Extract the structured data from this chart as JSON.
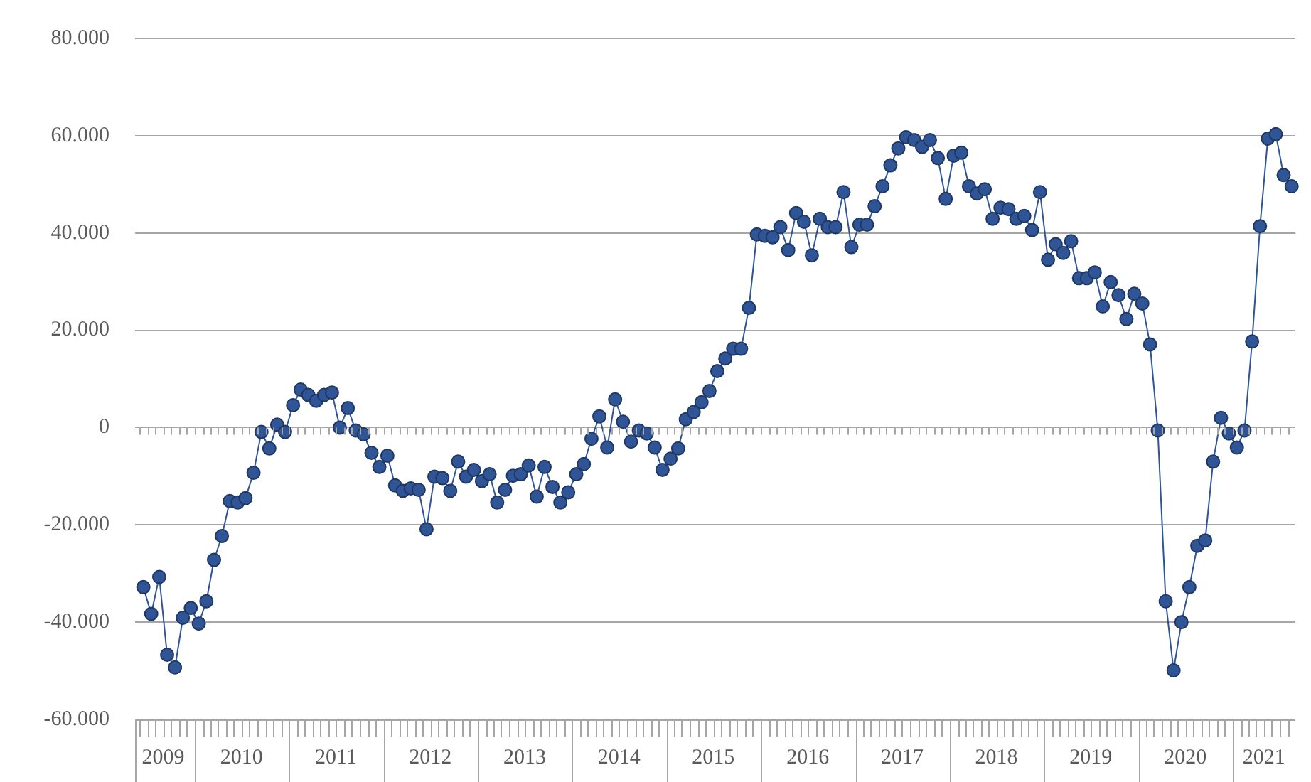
{
  "chart_data": {
    "type": "line",
    "marker": "circle",
    "grid": "y",
    "color": "#2f5597",
    "x": [
      "2009-06",
      "2009-07",
      "2009-08",
      "2009-09",
      "2009-10",
      "2009-11",
      "2009-12",
      "2010-01",
      "2010-02",
      "2010-03",
      "2010-04",
      "2010-05",
      "2010-06",
      "2010-07",
      "2010-08",
      "2010-09",
      "2010-10",
      "2010-11",
      "2010-12",
      "2011-01",
      "2011-02",
      "2011-03",
      "2011-04",
      "2011-05",
      "2011-06",
      "2011-07",
      "2011-08",
      "2011-09",
      "2011-10",
      "2011-11",
      "2011-12",
      "2012-01",
      "2012-02",
      "2012-03",
      "2012-04",
      "2012-05",
      "2012-06",
      "2012-07",
      "2012-08",
      "2012-09",
      "2012-10",
      "2012-11",
      "2012-12",
      "2013-01",
      "2013-02",
      "2013-03",
      "2013-04",
      "2013-05",
      "2013-06",
      "2013-07",
      "2013-08",
      "2013-09",
      "2013-10",
      "2013-11",
      "2013-12",
      "2014-01",
      "2014-02",
      "2014-03",
      "2014-04",
      "2014-05",
      "2014-06",
      "2014-07",
      "2014-08",
      "2014-09",
      "2014-10",
      "2014-11",
      "2014-12",
      "2015-01",
      "2015-02",
      "2015-03",
      "2015-04",
      "2015-05",
      "2015-06",
      "2015-07",
      "2015-08",
      "2015-09",
      "2015-10",
      "2015-11",
      "2015-12",
      "2016-01",
      "2016-02",
      "2016-03",
      "2016-04",
      "2016-05",
      "2016-06",
      "2016-07",
      "2016-08",
      "2016-09",
      "2016-10",
      "2016-11",
      "2016-12",
      "2017-01",
      "2017-02",
      "2017-03",
      "2017-04",
      "2017-05",
      "2017-06",
      "2017-07",
      "2017-08",
      "2017-09",
      "2017-10",
      "2017-11",
      "2017-12",
      "2018-01",
      "2018-02",
      "2018-03",
      "2018-04",
      "2018-05",
      "2018-06",
      "2018-07",
      "2018-08",
      "2018-09",
      "2018-10",
      "2018-11",
      "2018-12",
      "2019-01",
      "2019-02",
      "2019-03",
      "2019-04",
      "2019-05",
      "2019-06",
      "2019-07",
      "2019-08",
      "2019-09",
      "2019-10",
      "2019-11",
      "2019-12",
      "2020-01",
      "2020-02",
      "2020-03",
      "2020-04",
      "2020-05",
      "2020-06",
      "2020-07",
      "2020-08",
      "2020-09",
      "2020-10",
      "2020-11",
      "2020-12",
      "2021-01",
      "2021-02",
      "2021-03",
      "2021-04",
      "2021-05",
      "2021-06",
      "2021-07",
      "2021-08"
    ],
    "values": [
      -32800,
      -38300,
      -30700,
      -46700,
      -49300,
      -39100,
      -37100,
      -40300,
      -35700,
      -27200,
      -22300,
      -15100,
      -15400,
      -14500,
      -9300,
      -900,
      -4300,
      600,
      -900,
      4600,
      7800,
      6700,
      5500,
      6700,
      7200,
      0,
      4000,
      -600,
      -1400,
      -5200,
      -8100,
      -5800,
      -11900,
      -13000,
      -12500,
      -12800,
      -20900,
      -10100,
      -10400,
      -13000,
      -7000,
      -10100,
      -8700,
      -11000,
      -9600,
      -15400,
      -12800,
      -9900,
      -9600,
      -7800,
      -14200,
      -8100,
      -12200,
      -15400,
      -13300,
      -9600,
      -7500,
      -2300,
      2300,
      -4100,
      5800,
      1200,
      -2900,
      -600,
      -1200,
      -4100,
      -8700,
      -6400,
      -4300,
      1700,
      3200,
      5200,
      7500,
      11600,
      14200,
      16200,
      16200,
      24600,
      39700,
      39400,
      39100,
      41200,
      36500,
      44100,
      42300,
      35400,
      42900,
      41200,
      41200,
      48400,
      37100,
      41700,
      41700,
      45500,
      49600,
      53900,
      57400,
      59700,
      59100,
      57700,
      59100,
      55400,
      47000,
      55900,
      56500,
      49600,
      48100,
      49000,
      42900,
      45200,
      44900,
      42900,
      43500,
      40600,
      48400,
      34500,
      37700,
      35900,
      38300,
      30700,
      30700,
      31900,
      24900,
      29900,
      27200,
      22300,
      27500,
      25500,
      17100,
      -600,
      -35700,
      -49900,
      -40000,
      -32800,
      -24300,
      -23200,
      -7000,
      2000,
      -1200,
      -4100,
      -600,
      17700,
      41400,
      59400,
      60300,
      51900,
      49600
    ],
    "xlim": [
      "2009-05-15",
      "2021-08-31"
    ],
    "xticks": [
      {
        "value": "2009-09-01",
        "label": "2009"
      },
      {
        "value": "2010-07-01",
        "label": "2010"
      },
      {
        "value": "2011-07-01",
        "label": "2011"
      },
      {
        "value": "2012-07-01",
        "label": "2012"
      },
      {
        "value": "2013-07-01",
        "label": "2013"
      },
      {
        "value": "2014-07-01",
        "label": "2014"
      },
      {
        "value": "2015-07-01",
        "label": "2015"
      },
      {
        "value": "2016-07-01",
        "label": "2016"
      },
      {
        "value": "2017-07-01",
        "label": "2017"
      },
      {
        "value": "2018-07-01",
        "label": "2018"
      },
      {
        "value": "2019-07-01",
        "label": "2019"
      },
      {
        "value": "2020-07-01",
        "label": "2020"
      },
      {
        "value": "2021-05-01",
        "label": "2021"
      }
    ],
    "ylim": [
      -60000,
      80000
    ],
    "yticks": [
      {
        "value": -60000,
        "label": "-60.000"
      },
      {
        "value": -40000,
        "label": "-40.000"
      },
      {
        "value": -20000,
        "label": "-20.000"
      },
      0,
      {
        "value": 20000,
        "label": "20.000"
      },
      {
        "value": 40000,
        "label": "40.000"
      },
      {
        "value": 60000,
        "label": "60.000"
      },
      {
        "value": 80000,
        "label": "80.000"
      }
    ]
  }
}
